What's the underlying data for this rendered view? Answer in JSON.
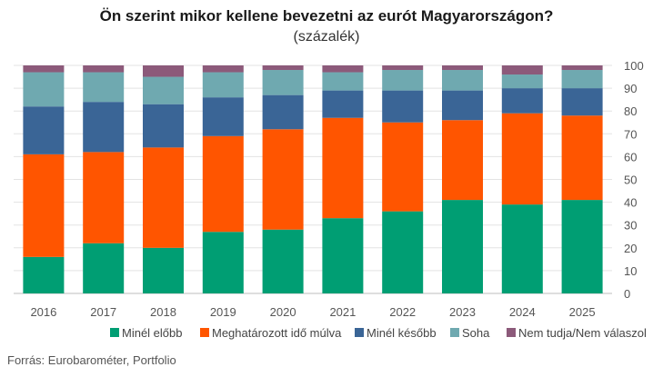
{
  "chart_data": {
    "type": "bar",
    "stacked": true,
    "title": "Ön szerint mikor kellene bevezetni az eurót Magyarországon?",
    "subtitle": "(százalék)",
    "categories": [
      "2016",
      "2017",
      "2018",
      "2019",
      "2020",
      "2021",
      "2022",
      "2023",
      "2024",
      "2025"
    ],
    "ylim": [
      0,
      100
    ],
    "yticks": [
      0,
      10,
      20,
      30,
      40,
      50,
      60,
      70,
      80,
      90,
      100
    ],
    "y_axis_position": "right",
    "grid": true,
    "legend_position": "bottom",
    "series": [
      {
        "name": "Minél előbb",
        "color": "#009e73",
        "values": [
          16,
          22,
          20,
          27,
          28,
          33,
          36,
          41,
          39,
          41
        ]
      },
      {
        "name": "Meghatározott idő múlva",
        "color": "#ff5500",
        "values": [
          45,
          40,
          44,
          42,
          44,
          44,
          39,
          35,
          40,
          37
        ]
      },
      {
        "name": "Minél később",
        "color": "#3a6596",
        "values": [
          21,
          22,
          19,
          17,
          15,
          12,
          14,
          13,
          11,
          12
        ]
      },
      {
        "name": "Soha",
        "color": "#6fa9b0",
        "values": [
          15,
          13,
          12,
          11,
          11,
          8,
          9,
          9,
          6,
          8
        ]
      },
      {
        "name": "Nem tudja/Nem válaszol",
        "color": "#8c5a7a",
        "values": [
          3,
          3,
          5,
          3,
          2,
          3,
          2,
          2,
          4,
          2
        ]
      }
    ]
  },
  "source": "Forrás: Eurobarométer, Portfolio"
}
